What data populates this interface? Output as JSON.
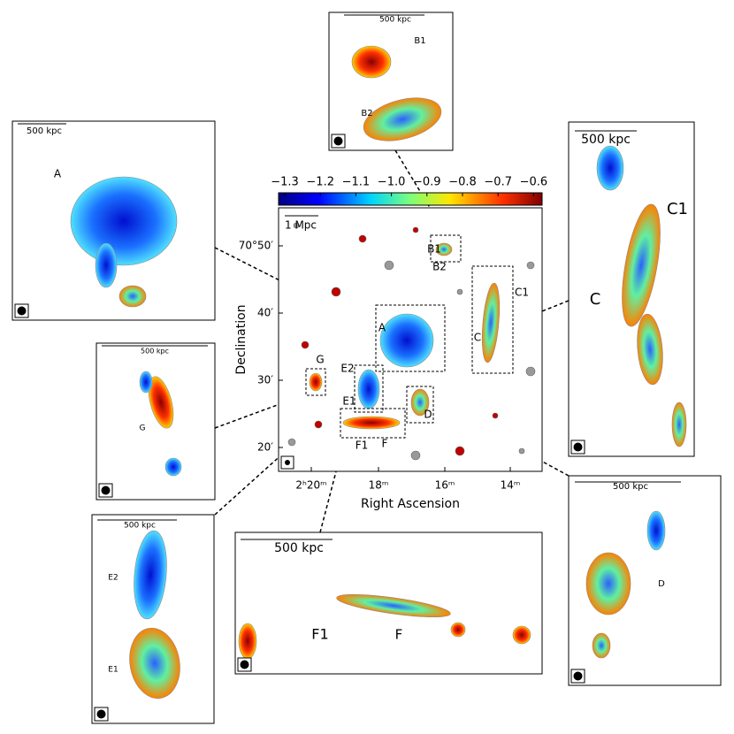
{
  "colorbar": {
    "ticks": [
      "−1.3",
      "−1.2",
      "−1.1",
      "−1.0",
      "−0.9",
      "−0.8",
      "−0.7",
      "−0.6"
    ]
  },
  "main": {
    "x_label": "Right Ascension",
    "y_label": "Declination",
    "x_ticks": [
      "2ʰ20ᵐ",
      "18ᵐ",
      "16ᵐ",
      "14ᵐ"
    ],
    "y_ticks": [
      "70°50′",
      "40′",
      "30′",
      "20′"
    ],
    "scale_bar": "1 Mpc",
    "regions": [
      "A",
      "B1",
      "B2",
      "C",
      "C1",
      "D",
      "E1",
      "E2",
      "F",
      "F1",
      "G"
    ]
  },
  "insets": {
    "A": {
      "scale_bar": "500 kpc",
      "labels": [
        "A"
      ]
    },
    "B": {
      "scale_bar": "500 kpc",
      "labels": [
        "B1",
        "B2"
      ]
    },
    "C": {
      "scale_bar": "500 kpc",
      "labels": [
        "C1",
        "C"
      ]
    },
    "D": {
      "scale_bar": "500 kpc",
      "labels": [
        "D"
      ]
    },
    "E": {
      "scale_bar": "500 kpc",
      "labels": [
        "E2",
        "E1"
      ]
    },
    "F": {
      "scale_bar": "500 kpc",
      "labels": [
        "F1",
        "F"
      ]
    },
    "G": {
      "scale_bar": "500 kpc",
      "labels": [
        "G"
      ]
    }
  }
}
